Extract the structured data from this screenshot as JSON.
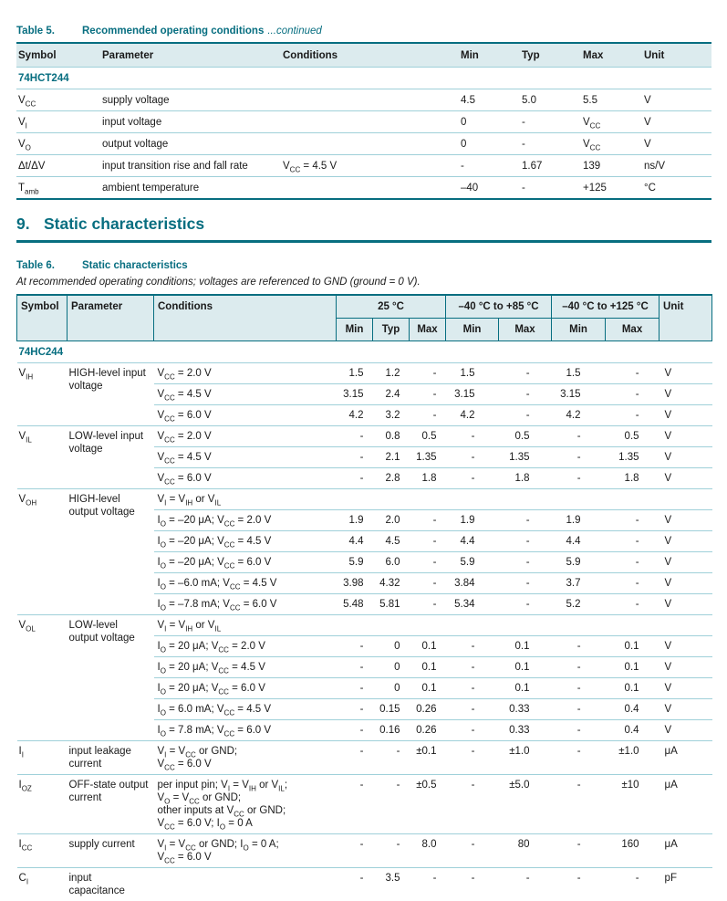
{
  "colors": {
    "teal": "#076e80",
    "light_line": "#9fd0d9",
    "header_bg": "#dcebee"
  },
  "table5": {
    "caption_label": "Table 5.",
    "caption_title": "Recommended operating conditions",
    "caption_suffix": "...continued",
    "columns": {
      "symbol": "Symbol",
      "parameter": "Parameter",
      "conditions": "Conditions",
      "min": "Min",
      "typ": "Typ",
      "max": "Max",
      "unit": "Unit"
    },
    "part": "74HCT244",
    "rows": [
      {
        "symbol": "V~CC~",
        "parameter": "supply voltage",
        "conditions": "",
        "min": "4.5",
        "typ": "5.0",
        "max": "5.5",
        "unit": "V"
      },
      {
        "symbol": "V~I~",
        "parameter": "input voltage",
        "conditions": "",
        "min": "0",
        "typ": "-",
        "max": "V~CC~",
        "unit": "V"
      },
      {
        "symbol": "V~O~",
        "parameter": "output voltage",
        "conditions": "",
        "min": "0",
        "typ": "-",
        "max": "V~CC~",
        "unit": "V"
      },
      {
        "symbol": "Δt/ΔV",
        "parameter": "input transition rise and fall rate",
        "conditions": "V~CC~ = 4.5 V",
        "min": "-",
        "typ": "1.67",
        "max": "139",
        "unit": "ns/V"
      },
      {
        "symbol": "T~amb~",
        "parameter": "ambient temperature",
        "conditions": "",
        "min": "–40",
        "typ": "-",
        "max": "+125",
        "unit": "°C"
      }
    ]
  },
  "section": {
    "number": "9.",
    "title": "Static characteristics"
  },
  "table6": {
    "caption_label": "Table 6.",
    "caption_title": "Static characteristics",
    "note": "At recommended operating conditions; voltages are referenced to GND (ground = 0 V).",
    "columns": {
      "symbol": "Symbol",
      "parameter": "Parameter",
      "conditions": "Conditions",
      "t25": "25 °C",
      "t85": "–40 °C to +85 °C",
      "t125": "–40 °C to +125 °C",
      "unit": "Unit",
      "min": "Min",
      "typ": "Typ",
      "max": "Max"
    },
    "part": "74HC244",
    "groups": [
      {
        "symbol": "V~IH~",
        "parameter": "HIGH-level input voltage",
        "rows": [
          {
            "cond": "V~CC~ = 2.0 V",
            "v": [
              "1.5",
              "1.2",
              "-",
              "1.5",
              "-",
              "1.5",
              "-"
            ],
            "unit": "V"
          },
          {
            "cond": "V~CC~ = 4.5 V",
            "v": [
              "3.15",
              "2.4",
              "-",
              "3.15",
              "-",
              "3.15",
              "-"
            ],
            "unit": "V"
          },
          {
            "cond": "V~CC~ = 6.0 V",
            "v": [
              "4.2",
              "3.2",
              "-",
              "4.2",
              "-",
              "4.2",
              "-"
            ],
            "unit": "V"
          }
        ]
      },
      {
        "symbol": "V~IL~",
        "parameter": "LOW-level input voltage",
        "rows": [
          {
            "cond": "V~CC~ = 2.0 V",
            "v": [
              "-",
              "0.8",
              "0.5",
              "-",
              "0.5",
              "-",
              "0.5"
            ],
            "unit": "V"
          },
          {
            "cond": "V~CC~ = 4.5 V",
            "v": [
              "-",
              "2.1",
              "1.35",
              "-",
              "1.35",
              "-",
              "1.35"
            ],
            "unit": "V"
          },
          {
            "cond": "V~CC~ = 6.0 V",
            "v": [
              "-",
              "2.8",
              "1.8",
              "-",
              "1.8",
              "-",
              "1.8"
            ],
            "unit": "V"
          }
        ]
      },
      {
        "symbol": "V~OH~",
        "parameter": "HIGH-level output voltage",
        "note": "V~I~ = V~IH~ or V~IL~",
        "rows": [
          {
            "cond": "I~O~ = –20 μA; V~CC~ = 2.0 V",
            "v": [
              "1.9",
              "2.0",
              "-",
              "1.9",
              "-",
              "1.9",
              "-"
            ],
            "unit": "V"
          },
          {
            "cond": "I~O~ = –20 μA; V~CC~ = 4.5 V",
            "v": [
              "4.4",
              "4.5",
              "-",
              "4.4",
              "-",
              "4.4",
              "-"
            ],
            "unit": "V"
          },
          {
            "cond": "I~O~ = –20 μA; V~CC~ = 6.0 V",
            "v": [
              "5.9",
              "6.0",
              "-",
              "5.9",
              "-",
              "5.9",
              "-"
            ],
            "unit": "V"
          },
          {
            "cond": "I~O~ = –6.0 mA; V~CC~ = 4.5 V",
            "v": [
              "3.98",
              "4.32",
              "-",
              "3.84",
              "-",
              "3.7",
              "-"
            ],
            "unit": "V"
          },
          {
            "cond": "I~O~ = –7.8 mA; V~CC~ = 6.0 V",
            "v": [
              "5.48",
              "5.81",
              "-",
              "5.34",
              "-",
              "5.2",
              "-"
            ],
            "unit": "V"
          }
        ]
      },
      {
        "symbol": "V~OL~",
        "parameter": "LOW-level output voltage",
        "note": "V~I~ = V~IH~ or V~IL~",
        "rows": [
          {
            "cond": "I~O~ = 20 μA; V~CC~ = 2.0 V",
            "v": [
              "-",
              "0",
              "0.1",
              "-",
              "0.1",
              "-",
              "0.1"
            ],
            "unit": "V"
          },
          {
            "cond": "I~O~ = 20 μA; V~CC~ = 4.5 V",
            "v": [
              "-",
              "0",
              "0.1",
              "-",
              "0.1",
              "-",
              "0.1"
            ],
            "unit": "V"
          },
          {
            "cond": "I~O~ = 20 μA; V~CC~ = 6.0 V",
            "v": [
              "-",
              "0",
              "0.1",
              "-",
              "0.1",
              "-",
              "0.1"
            ],
            "unit": "V"
          },
          {
            "cond": "I~O~ = 6.0 mA; V~CC~ = 4.5 V",
            "v": [
              "-",
              "0.15",
              "0.26",
              "-",
              "0.33",
              "-",
              "0.4"
            ],
            "unit": "V"
          },
          {
            "cond": "I~O~ = 7.8 mA; V~CC~ = 6.0 V",
            "v": [
              "-",
              "0.16",
              "0.26",
              "-",
              "0.33",
              "-",
              "0.4"
            ],
            "unit": "V"
          }
        ]
      },
      {
        "symbol": "I~I~",
        "parameter": "input leakage current",
        "rows": [
          {
            "cond": "V~I~ = V~CC~ or GND;\nV~CC~ = 6.0 V",
            "v": [
              "-",
              "-",
              "±0.1",
              "-",
              "±1.0",
              "-",
              "±1.0"
            ],
            "unit": "μA"
          }
        ]
      },
      {
        "symbol": "I~OZ~",
        "parameter": "OFF-state output current",
        "rows": [
          {
            "cond": "per input pin; V~I~ = V~IH~ or V~IL~;\nV~O~ = V~CC~ or GND;\nother inputs at V~CC~ or GND;\nV~CC~ = 6.0 V; I~O~ = 0 A",
            "v": [
              "-",
              "-",
              "±0.5",
              "-",
              "±5.0",
              "-",
              "±10"
            ],
            "unit": "μA"
          }
        ]
      },
      {
        "symbol": "I~CC~",
        "parameter": "supply current",
        "rows": [
          {
            "cond": "V~I~ = V~CC~ or GND; I~O~ = 0 A;\nV~CC~ = 6.0 V",
            "v": [
              "-",
              "-",
              "8.0",
              "-",
              "80",
              "-",
              "160"
            ],
            "unit": "μA"
          }
        ]
      },
      {
        "symbol": "C~I~",
        "parameter": "input capacitance",
        "rows": [
          {
            "cond": "",
            "v": [
              "-",
              "3.5",
              "-",
              "-",
              "-",
              "-",
              "-"
            ],
            "unit": "pF"
          }
        ]
      }
    ]
  }
}
